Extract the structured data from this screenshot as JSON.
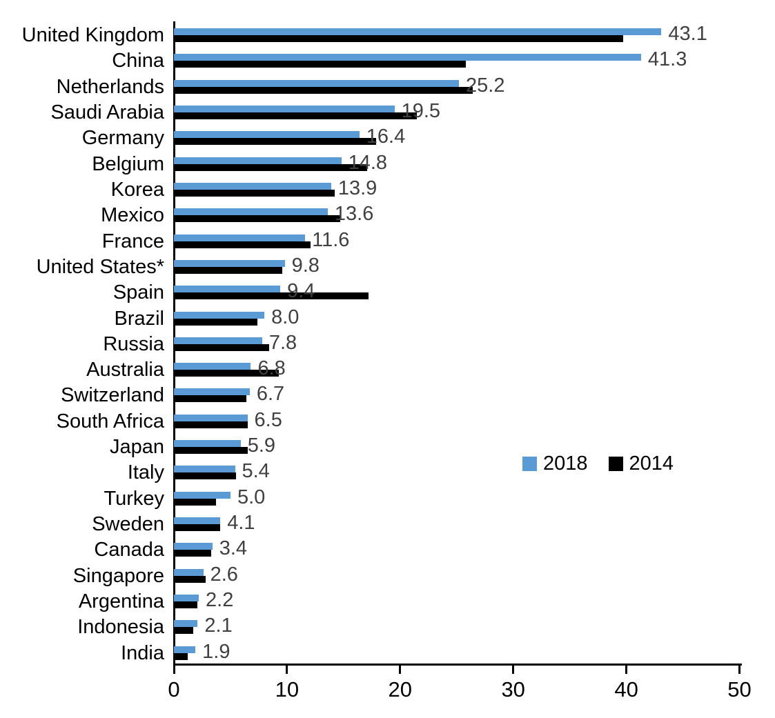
{
  "chart_data": {
    "type": "bar",
    "orientation": "horizontal",
    "title": "",
    "categories": [
      "United Kingdom",
      "China",
      "Netherlands",
      "Saudi Arabia",
      "Germany",
      "Belgium",
      "Korea",
      "Mexico",
      "France",
      "United States*",
      "Spain",
      "Brazil",
      "Russia",
      "Australia",
      "Switzerland",
      "South Africa",
      "Japan",
      "Italy",
      "Turkey",
      "Sweden",
      "Canada",
      "Singapore",
      "Argentina",
      "Indonesia",
      "India"
    ],
    "series": [
      {
        "name": "2018",
        "color": "#5B9BD5",
        "values": [
          43.1,
          41.3,
          25.2,
          19.5,
          16.4,
          14.8,
          13.9,
          13.6,
          11.6,
          9.8,
          9.4,
          8.0,
          7.8,
          6.8,
          6.7,
          6.5,
          5.9,
          5.4,
          5.0,
          4.1,
          3.4,
          2.6,
          2.2,
          2.1,
          1.9
        ]
      },
      {
        "name": "2014",
        "color": "#000000",
        "values": [
          39.7,
          25.8,
          26.4,
          21.5,
          17.9,
          17.1,
          14.2,
          14.7,
          12.1,
          9.6,
          17.2,
          7.4,
          8.4,
          9.3,
          6.4,
          6.5,
          6.5,
          5.5,
          3.7,
          4.1,
          3.3,
          2.8,
          2.1,
          1.7,
          1.2
        ]
      }
    ],
    "data_labels": [
      "43.1",
      "41.3",
      "25.2",
      "19.5",
      "16.4",
      "14.8",
      "13.9",
      "13.6",
      "11.6",
      "9.8",
      "9.4",
      "8.0",
      "7.8",
      "6.8",
      "6.7",
      "6.5",
      "5.9",
      "5.4",
      "5.0",
      "4.1",
      "3.4",
      "2.6",
      "2.2",
      "2.1",
      "1.9"
    ],
    "data_label_series": "2018",
    "data_label_color": "#404040",
    "xlim": [
      0,
      50
    ],
    "x_ticks": [
      "0",
      "10",
      "20",
      "30",
      "40",
      "50"
    ],
    "grid": "off",
    "legend": {
      "position": "middle-right",
      "entries": [
        {
          "label": "2018",
          "color": "#5B9BD5"
        },
        {
          "label": "2014",
          "color": "#000000"
        }
      ]
    }
  }
}
